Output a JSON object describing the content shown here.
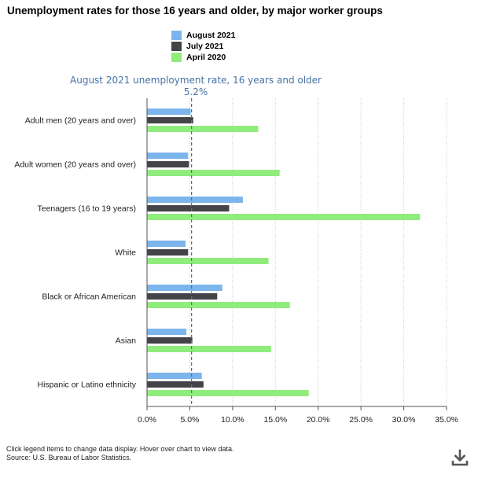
{
  "chart_data": {
    "type": "bar",
    "orientation": "horizontal",
    "title": "Unemployment rates for those 16 years and older, by major worker groups",
    "categories": [
      "Adult men (20 years and over)",
      "Adult women (20 years and over)",
      "Teenagers (16 to 19 years)",
      "White",
      "Black or African American",
      "Asian",
      "Hispanic or Latino ethnicity"
    ],
    "series": [
      {
        "name": "August 2021",
        "color": "#7cb5ec",
        "values": [
          5.1,
          4.8,
          11.2,
          4.5,
          8.8,
          4.6,
          6.4
        ]
      },
      {
        "name": "July 2021",
        "color": "#434348",
        "values": [
          5.4,
          4.9,
          9.6,
          4.8,
          8.2,
          5.3,
          6.6
        ]
      },
      {
        "name": "April 2020",
        "color": "#90ed7d",
        "values": [
          13.0,
          15.5,
          31.9,
          14.2,
          16.7,
          14.5,
          18.9
        ]
      }
    ],
    "xlim": [
      0,
      35
    ],
    "ticks": [
      "0.0%",
      "5.0%",
      "10.0%",
      "15.0%",
      "20.0%",
      "25.0%",
      "30.0%",
      "35.0%"
    ],
    "tick_values": [
      0,
      5,
      10,
      15,
      20,
      25,
      30,
      35
    ],
    "reference_line": {
      "value": 5.2,
      "label": "August 2021 unemployment rate, 16 years and older",
      "value_label": "5.2%",
      "color": "#4572a7"
    },
    "grid": true,
    "legend_position": "top"
  },
  "footer": {
    "note": "Click legend items to change data display. Hover over chart to view data.",
    "source": "Source: U.S. Bureau of Labor Statistics."
  },
  "icons": {
    "download": "download-icon"
  }
}
